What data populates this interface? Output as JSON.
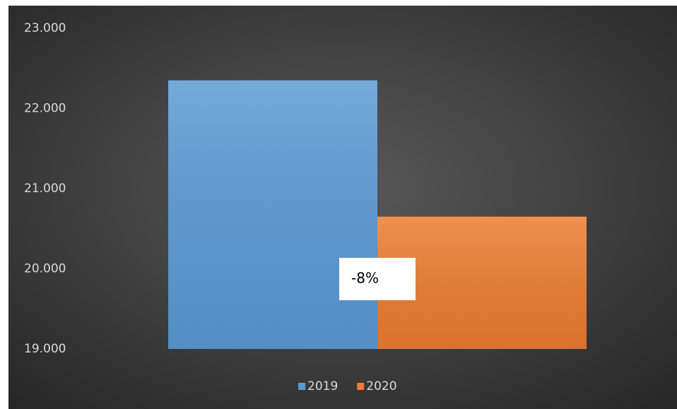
{
  "chart_data": {
    "type": "bar",
    "series": [
      {
        "name": "2019",
        "color": "#5b9bd5",
        "values": [
          22350
        ]
      },
      {
        "name": "2020",
        "color": "#ed7d31",
        "values": [
          20650
        ]
      }
    ],
    "ylim": [
      19000,
      23000
    ],
    "yticks": [
      {
        "value": 19000,
        "label": "19.000"
      },
      {
        "value": 20000,
        "label": "20.000"
      },
      {
        "value": 21000,
        "label": "21.000"
      },
      {
        "value": 22000,
        "label": "22.000"
      },
      {
        "value": 23000,
        "label": "23.000"
      }
    ],
    "grid": false,
    "legend": "bottom",
    "annotation": "-8%"
  }
}
